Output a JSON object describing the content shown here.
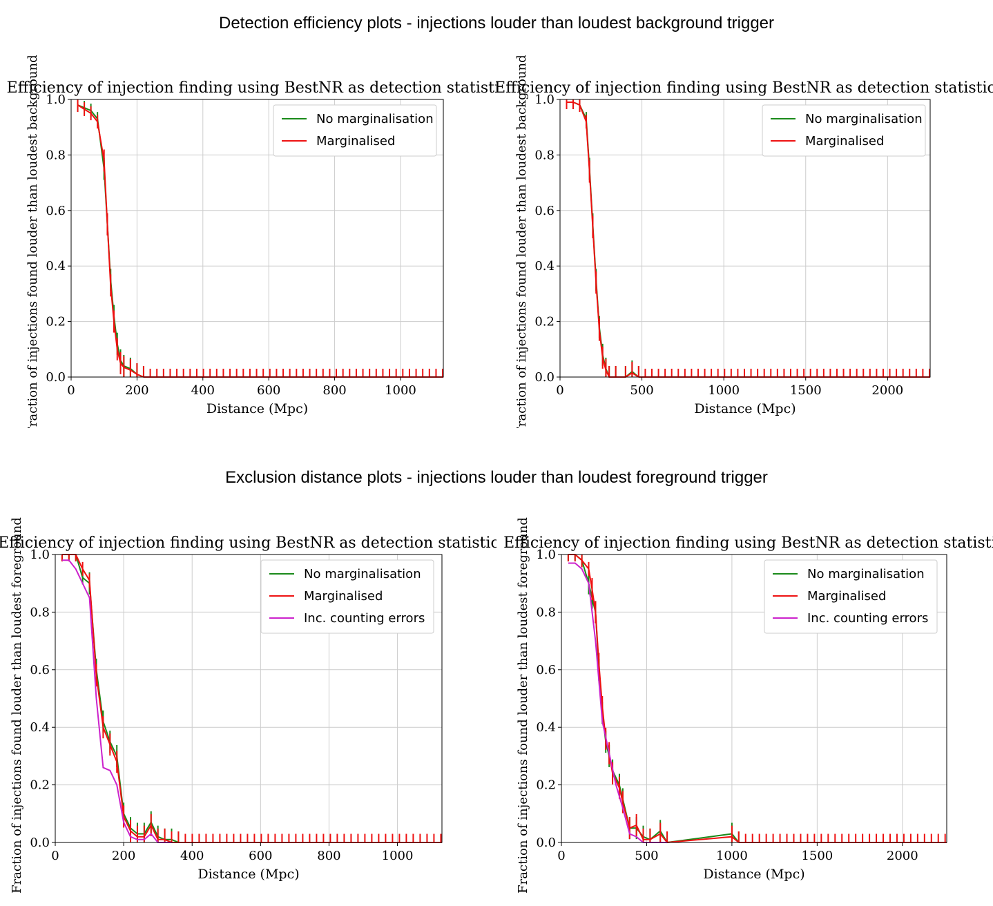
{
  "section_titles": {
    "top": "Detection efficiency plots - injections louder than loudest background trigger",
    "bottom": "Exclusion distance plots - injections louder than loudest foreground trigger"
  },
  "colors": {
    "no_marg": "#1a8a1a",
    "marg": "#ee1111",
    "counting": "#cc22cc",
    "grid": "#cccccc"
  },
  "chart_data": [
    {
      "type": "line",
      "title": "Efficiency of injection finding using BestNR as detection statistic",
      "xlabel": "Distance (Mpc)",
      "ylabel": "Fraction of injections found louder than loudest background",
      "xlim": [
        0,
        1130
      ],
      "ylim": [
        0,
        1.0
      ],
      "xticks": [
        0,
        200,
        400,
        600,
        800,
        1000
      ],
      "yticks": [
        0.0,
        0.2,
        0.4,
        0.6,
        0.8,
        1.0
      ],
      "grid": true,
      "legend": "top-right",
      "series": [
        {
          "name": "No marginalisation",
          "color": "#1a8a1a",
          "x": [
            20,
            40,
            60,
            80,
            100,
            110,
            120,
            130,
            140,
            150,
            160,
            180,
            200,
            220
          ],
          "y": [
            0.98,
            0.97,
            0.96,
            0.93,
            0.75,
            0.55,
            0.35,
            0.22,
            0.12,
            0.06,
            0.04,
            0.03,
            0.01,
            0.0
          ]
        },
        {
          "name": "Marginalised",
          "color": "#ee1111",
          "x": [
            20,
            40,
            60,
            80,
            100,
            110,
            120,
            130,
            140,
            150,
            160,
            180,
            200,
            220
          ],
          "y": [
            0.98,
            0.965,
            0.95,
            0.92,
            0.78,
            0.55,
            0.33,
            0.2,
            0.1,
            0.05,
            0.035,
            0.025,
            0.01,
            0.0
          ]
        }
      ]
    },
    {
      "type": "line",
      "title": "Efficiency of injection finding using BestNR as detection statistic",
      "xlabel": "Distance (Mpc)",
      "ylabel": "Fraction of injections found louder than loudest background",
      "xlim": [
        0,
        2260
      ],
      "ylim": [
        0,
        1.0
      ],
      "xticks": [
        0,
        500,
        1000,
        1500,
        2000
      ],
      "yticks": [
        0.0,
        0.2,
        0.4,
        0.6,
        0.8,
        1.0
      ],
      "grid": true,
      "legend": "top-right",
      "series": [
        {
          "name": "No marginalisation",
          "color": "#1a8a1a",
          "x": [
            40,
            80,
            120,
            160,
            180,
            200,
            220,
            240,
            260,
            280,
            300,
            340,
            400,
            440,
            480
          ],
          "y": [
            0.99,
            0.99,
            0.98,
            0.93,
            0.75,
            0.55,
            0.35,
            0.18,
            0.08,
            0.03,
            0.0,
            0.0,
            0.0,
            0.02,
            0.0
          ]
        },
        {
          "name": "Marginalised",
          "color": "#ee1111",
          "x": [
            40,
            80,
            120,
            160,
            180,
            200,
            220,
            240,
            260,
            280,
            300,
            340,
            400,
            440,
            480
          ],
          "y": [
            0.99,
            0.99,
            0.98,
            0.92,
            0.74,
            0.54,
            0.34,
            0.17,
            0.07,
            0.025,
            0.0,
            0.0,
            0.0,
            0.015,
            0.0
          ]
        }
      ]
    },
    {
      "type": "line",
      "title": "Efficiency of injection finding using BestNR as detection statistic",
      "xlabel": "Distance (Mpc)",
      "ylabel": "Fraction of injections found louder than loudest foreground",
      "xlim": [
        0,
        1130
      ],
      "ylim": [
        0,
        1.0
      ],
      "xticks": [
        0,
        200,
        400,
        600,
        800,
        1000
      ],
      "yticks": [
        0.0,
        0.2,
        0.4,
        0.6,
        0.8,
        1.0
      ],
      "grid": true,
      "legend": "top-right",
      "series": [
        {
          "name": "No marginalisation",
          "color": "#1a8a1a",
          "x": [
            20,
            40,
            60,
            80,
            100,
            120,
            140,
            160,
            180,
            200,
            220,
            240,
            260,
            280,
            300,
            320,
            340,
            360
          ],
          "y": [
            1.0,
            1.0,
            1.0,
            0.92,
            0.9,
            0.6,
            0.42,
            0.35,
            0.3,
            0.1,
            0.05,
            0.03,
            0.03,
            0.07,
            0.02,
            0.01,
            0.01,
            0.0
          ]
        },
        {
          "name": "Marginalised",
          "color": "#ee1111",
          "x": [
            20,
            40,
            60,
            80,
            100,
            120,
            140,
            160,
            180,
            200,
            220,
            240,
            260,
            280,
            300,
            320,
            340,
            360
          ],
          "y": [
            1.0,
            1.0,
            1.0,
            0.95,
            0.91,
            0.58,
            0.4,
            0.34,
            0.28,
            0.09,
            0.04,
            0.02,
            0.02,
            0.06,
            0.01,
            0.01,
            0.0,
            0.0
          ]
        },
        {
          "name": "Inc. counting errors",
          "color": "#cc22cc",
          "x": [
            20,
            40,
            60,
            80,
            100,
            120,
            140,
            160,
            180,
            200,
            220,
            240,
            260,
            280,
            300,
            320,
            340
          ],
          "y": [
            0.98,
            0.98,
            0.95,
            0.9,
            0.85,
            0.5,
            0.26,
            0.25,
            0.2,
            0.07,
            0.02,
            0.01,
            0.01,
            0.03,
            0.0,
            0.0,
            0.0
          ]
        }
      ]
    },
    {
      "type": "line",
      "title": "Efficiency of injection finding using BestNR as detection statistic",
      "xlabel": "Distance (Mpc)",
      "ylabel": "Fraction of injections found louder than loudest foreground",
      "xlim": [
        0,
        2260
      ],
      "ylim": [
        0,
        1.0
      ],
      "xticks": [
        0,
        500,
        1000,
        1500,
        2000
      ],
      "yticks": [
        0.0,
        0.2,
        0.4,
        0.6,
        0.8,
        1.0
      ],
      "grid": true,
      "legend": "top-right",
      "series": [
        {
          "name": "No marginalisation",
          "color": "#1a8a1a",
          "x": [
            40,
            80,
            120,
            160,
            180,
            200,
            220,
            240,
            260,
            280,
            300,
            340,
            360,
            400,
            440,
            480,
            520,
            580,
            620,
            1000,
            1040
          ],
          "y": [
            1.0,
            1.0,
            0.98,
            0.9,
            0.85,
            0.8,
            0.6,
            0.45,
            0.35,
            0.3,
            0.25,
            0.2,
            0.15,
            0.05,
            0.05,
            0.02,
            0.01,
            0.04,
            0.0,
            0.03,
            0.0
          ]
        },
        {
          "name": "Marginalised",
          "color": "#ee1111",
          "x": [
            40,
            80,
            120,
            160,
            180,
            200,
            220,
            240,
            260,
            280,
            300,
            340,
            360,
            400,
            440,
            480,
            520,
            580,
            620,
            1000,
            1040
          ],
          "y": [
            1.0,
            1.0,
            0.98,
            0.95,
            0.88,
            0.8,
            0.62,
            0.47,
            0.36,
            0.31,
            0.24,
            0.19,
            0.14,
            0.05,
            0.06,
            0.01,
            0.01,
            0.03,
            0.0,
            0.02,
            0.0
          ]
        },
        {
          "name": "Inc. counting errors",
          "color": "#cc22cc",
          "x": [
            40,
            80,
            120,
            160,
            200,
            240,
            280,
            320,
            360,
            400,
            440,
            480,
            520,
            580,
            620
          ],
          "y": [
            0.97,
            0.97,
            0.95,
            0.9,
            0.7,
            0.42,
            0.31,
            0.2,
            0.12,
            0.03,
            0.02,
            0.0,
            0.0,
            0.0,
            0.0
          ]
        }
      ]
    }
  ]
}
